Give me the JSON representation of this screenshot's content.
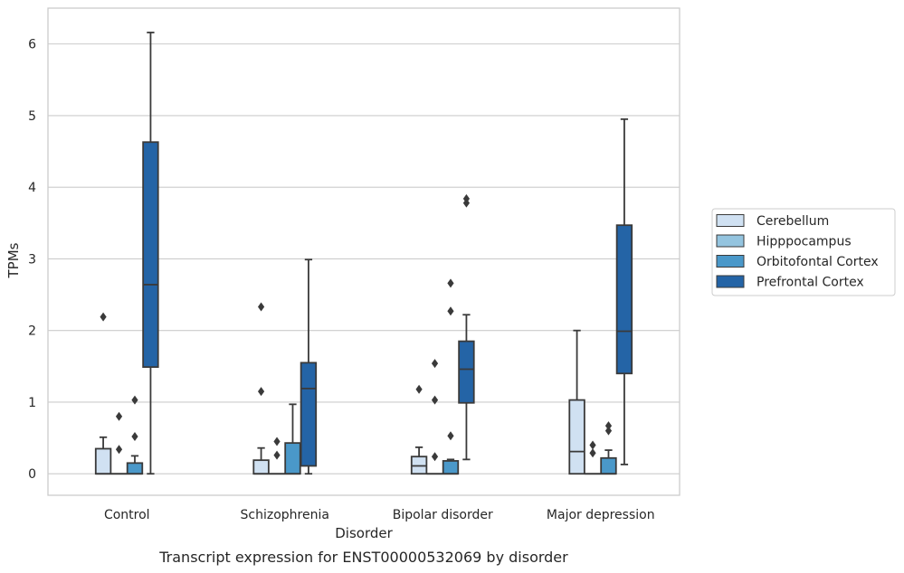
{
  "chart_data": {
    "type": "box",
    "title": "",
    "caption": "Transcript expression for ENST00000532069 by disorder",
    "xlabel": "Disorder",
    "ylabel": "TPMs",
    "ylim": [
      -0.3,
      6.5
    ],
    "yticks": [
      0,
      1,
      2,
      3,
      4,
      5,
      6
    ],
    "grid": "horizontal",
    "legend_position": "right",
    "categories": [
      "Control",
      "Schizophrenia",
      "Bipolar disorder",
      "Major depression"
    ],
    "series": [
      {
        "name": "Cerebellum",
        "color": "#d0e1f2",
        "boxes": [
          {
            "min": 0,
            "q1": 0,
            "median": 0,
            "q3": 0.35,
            "max": 0.51,
            "outliers": [
              2.19
            ]
          },
          {
            "min": 0,
            "q1": 0,
            "median": 0,
            "q3": 0.19,
            "max": 0.36,
            "outliers": [
              1.15,
              2.33
            ]
          },
          {
            "min": 0,
            "q1": 0,
            "median": 0.11,
            "q3": 0.24,
            "max": 0.37,
            "outliers": [
              1.18
            ]
          },
          {
            "min": 0,
            "q1": 0,
            "median": 0.31,
            "q3": 1.03,
            "max": 2.0,
            "outliers": []
          }
        ]
      },
      {
        "name": "Hipppocampus",
        "color": "#94c4df",
        "boxes": [
          {
            "min": 0,
            "q1": 0,
            "median": 0,
            "q3": 0,
            "max": 0,
            "outliers": [
              0.34,
              0.8
            ]
          },
          {
            "min": 0,
            "q1": 0,
            "median": 0,
            "q3": 0,
            "max": 0,
            "outliers": [
              0.26,
              0.45
            ]
          },
          {
            "min": 0,
            "q1": 0,
            "median": 0,
            "q3": 0,
            "max": 0,
            "outliers": [
              0.24,
              1.03,
              1.54
            ]
          },
          {
            "min": 0,
            "q1": 0,
            "median": 0,
            "q3": 0,
            "max": 0,
            "outliers": [
              0.29,
              0.4
            ]
          }
        ]
      },
      {
        "name": "Orbitofontal Cortex",
        "color": "#4a98c9",
        "boxes": [
          {
            "min": 0,
            "q1": 0,
            "median": 0,
            "q3": 0.15,
            "max": 0.25,
            "outliers": [
              0.52,
              1.03
            ]
          },
          {
            "min": 0,
            "q1": 0,
            "median": 0,
            "q3": 0.43,
            "max": 0.97,
            "outliers": []
          },
          {
            "min": 0,
            "q1": 0,
            "median": 0,
            "q3": 0.18,
            "max": 0.2,
            "outliers": [
              0.53,
              2.27,
              2.66
            ]
          },
          {
            "min": 0,
            "q1": 0,
            "median": 0,
            "q3": 0.22,
            "max": 0.33,
            "outliers": [
              0.6,
              0.67
            ]
          }
        ]
      },
      {
        "name": "Prefrontal Cortex",
        "color": "#2464a6",
        "boxes": [
          {
            "min": 0,
            "q1": 1.49,
            "median": 2.64,
            "q3": 4.63,
            "max": 6.16,
            "outliers": []
          },
          {
            "min": 0,
            "q1": 0.11,
            "median": 1.19,
            "q3": 1.55,
            "max": 2.99,
            "outliers": []
          },
          {
            "min": 0.2,
            "q1": 0.99,
            "median": 1.46,
            "q3": 1.85,
            "max": 2.22,
            "outliers": [
              3.78,
              3.84
            ]
          },
          {
            "min": 0.13,
            "q1": 1.4,
            "median": 1.99,
            "q3": 3.47,
            "max": 4.95,
            "outliers": []
          }
        ]
      }
    ]
  }
}
